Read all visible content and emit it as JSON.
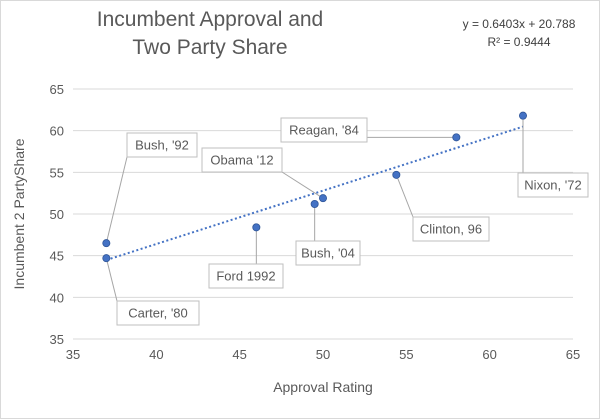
{
  "chart_data": {
    "type": "scatter",
    "title": [
      "Incumbent Approval and",
      "Two Party Share"
    ],
    "xlabel": "Approval Rating",
    "ylabel": "Incumbent 2 PartyShare",
    "xlim": [
      35,
      65
    ],
    "ylim": [
      35,
      65
    ],
    "xticks": [
      35,
      40,
      45,
      50,
      55,
      60,
      65
    ],
    "yticks": [
      35,
      40,
      45,
      50,
      55,
      60,
      65
    ],
    "grid": "horizontal",
    "marker_color": "#4472c4",
    "trendline": {
      "type": "linear",
      "equation": "y = 0.6403x + 20.788",
      "r_squared": "R² = 0.9444",
      "slope": 0.6403,
      "intercept": 20.788,
      "x_range": [
        37,
        62
      ],
      "color": "#4472c4",
      "style": "dotted"
    },
    "points": [
      {
        "label": "Bush, '92",
        "x": 37,
        "y": 46.5
      },
      {
        "label": "Carter, '80",
        "x": 37,
        "y": 44.7
      },
      {
        "label": "Ford 1992",
        "x": 46,
        "y": 48.4
      },
      {
        "label": "Obama '12",
        "x": 50,
        "y": 51.9
      },
      {
        "label": "Bush, '04",
        "x": 49.5,
        "y": 51.2
      },
      {
        "label": "Clinton, 96",
        "x": 54.4,
        "y": 54.7
      },
      {
        "label": "Reagan, '84",
        "x": 58,
        "y": 59.2
      },
      {
        "label": "Nixon, '72",
        "x": 62,
        "y": 61.8
      }
    ]
  }
}
